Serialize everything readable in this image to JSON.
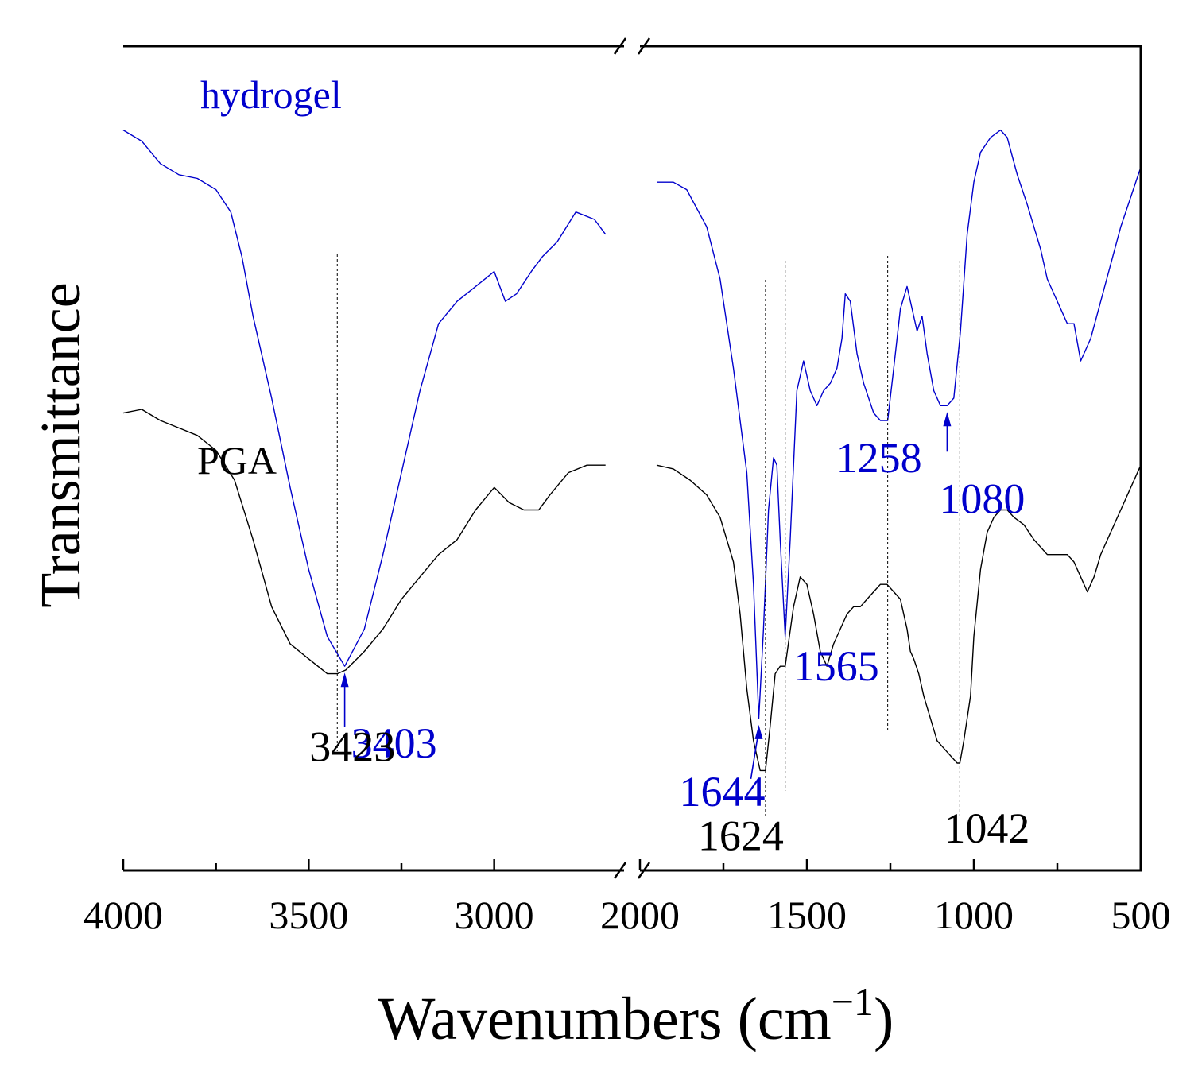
{
  "chart_data": {
    "type": "line",
    "title": "",
    "xlabel": "Wavenumbers (cm",
    "xlabel_sup": "−1",
    "xlabel_close": ")",
    "ylabel": "Transmittance",
    "segments": [
      {
        "xmin": 2650,
        "xmax": 4000,
        "reversed": true
      },
      {
        "xmin": 500,
        "xmax": 2000,
        "reversed": true
      }
    ],
    "x_ticks": [
      "4000",
      "3500",
      "3000",
      "2000",
      "1500",
      "1000",
      "500"
    ],
    "series": [
      {
        "name": "hydrogel",
        "color": "#0000cc",
        "segments": [
          [
            [
              4000,
              93
            ],
            [
              3950,
              91.5
            ],
            [
              3900,
              88.5
            ],
            [
              3850,
              87
            ],
            [
              3800,
              86.5
            ],
            [
              3750,
              85
            ],
            [
              3710,
              82
            ],
            [
              3680,
              76
            ],
            [
              3650,
              68
            ],
            [
              3600,
              57
            ],
            [
              3550,
              45
            ],
            [
              3500,
              34
            ],
            [
              3450,
              25
            ],
            [
              3403,
              21
            ],
            [
              3350,
              26
            ],
            [
              3300,
              36
            ],
            [
              3250,
              47
            ],
            [
              3200,
              58
            ],
            [
              3150,
              67
            ],
            [
              3100,
              70
            ],
            [
              3050,
              72
            ],
            [
              3000,
              74
            ],
            [
              2970,
              70
            ],
            [
              2940,
              71
            ],
            [
              2900,
              74
            ],
            [
              2870,
              76
            ],
            [
              2830,
              78
            ],
            [
              2780,
              82
            ],
            [
              2730,
              81
            ],
            [
              2700,
              79
            ]
          ],
          [
            [
              1950,
              86
            ],
            [
              1900,
              86
            ],
            [
              1860,
              85
            ],
            [
              1800,
              80
            ],
            [
              1760,
              73
            ],
            [
              1720,
              61
            ],
            [
              1700,
              54
            ],
            [
              1680,
              47
            ],
            [
              1660,
              32
            ],
            [
              1644,
              14
            ],
            [
              1630,
              26
            ],
            [
              1615,
              42
            ],
            [
              1600,
              49
            ],
            [
              1590,
              48
            ],
            [
              1580,
              38
            ],
            [
              1565,
              25
            ],
            [
              1550,
              38
            ],
            [
              1530,
              58
            ],
            [
              1510,
              62
            ],
            [
              1490,
              58
            ],
            [
              1470,
              56
            ],
            [
              1450,
              58
            ],
            [
              1430,
              59
            ],
            [
              1410,
              61
            ],
            [
              1395,
              65
            ],
            [
              1385,
              71
            ],
            [
              1370,
              70
            ],
            [
              1350,
              63
            ],
            [
              1330,
              59
            ],
            [
              1300,
              55
            ],
            [
              1280,
              54
            ],
            [
              1258,
              54
            ],
            [
              1240,
              61
            ],
            [
              1220,
              69
            ],
            [
              1200,
              72
            ],
            [
              1185,
              69
            ],
            [
              1170,
              66
            ],
            [
              1155,
              68
            ],
            [
              1140,
              63
            ],
            [
              1120,
              58
            ],
            [
              1100,
              56
            ],
            [
              1080,
              56
            ],
            [
              1060,
              57
            ],
            [
              1040,
              66
            ],
            [
              1020,
              79
            ],
            [
              1000,
              86
            ],
            [
              980,
              90
            ],
            [
              950,
              92
            ],
            [
              920,
              93
            ],
            [
              900,
              92
            ],
            [
              870,
              87
            ],
            [
              840,
              83
            ],
            [
              820,
              80
            ],
            [
              800,
              77
            ],
            [
              780,
              73
            ],
            [
              750,
              70
            ],
            [
              720,
              67
            ],
            [
              700,
              67
            ],
            [
              680,
              62
            ],
            [
              650,
              65
            ],
            [
              620,
              70
            ],
            [
              590,
              75
            ],
            [
              560,
              80
            ],
            [
              530,
              84
            ],
            [
              500,
              88
            ]
          ]
        ]
      },
      {
        "name": "PGA",
        "color": "#000000",
        "segments": [
          [
            [
              4000,
              55
            ],
            [
              3950,
              55.5
            ],
            [
              3900,
              54
            ],
            [
              3850,
              53
            ],
            [
              3800,
              52
            ],
            [
              3750,
              50
            ],
            [
              3700,
              46
            ],
            [
              3650,
              38
            ],
            [
              3600,
              29
            ],
            [
              3550,
              24
            ],
            [
              3500,
              22
            ],
            [
              3450,
              20
            ],
            [
              3423,
              20
            ],
            [
              3400,
              20.5
            ],
            [
              3350,
              23
            ],
            [
              3300,
              26
            ],
            [
              3250,
              30
            ],
            [
              3200,
              33
            ],
            [
              3150,
              36
            ],
            [
              3100,
              38
            ],
            [
              3050,
              42
            ],
            [
              3000,
              45
            ],
            [
              2960,
              43
            ],
            [
              2920,
              42
            ],
            [
              2880,
              42
            ],
            [
              2850,
              44
            ],
            [
              2800,
              47
            ],
            [
              2750,
              48
            ],
            [
              2700,
              48
            ]
          ],
          [
            [
              1950,
              48
            ],
            [
              1900,
              47.5
            ],
            [
              1850,
              46
            ],
            [
              1800,
              44
            ],
            [
              1760,
              41
            ],
            [
              1720,
              35
            ],
            [
              1700,
              28
            ],
            [
              1680,
              18
            ],
            [
              1660,
              11
            ],
            [
              1640,
              7
            ],
            [
              1624,
              7
            ],
            [
              1610,
              13
            ],
            [
              1595,
              20
            ],
            [
              1580,
              21
            ],
            [
              1565,
              21
            ],
            [
              1540,
              29
            ],
            [
              1520,
              33
            ],
            [
              1500,
              32
            ],
            [
              1480,
              28
            ],
            [
              1460,
              23
            ],
            [
              1440,
              21
            ],
            [
              1420,
              24
            ],
            [
              1400,
              26
            ],
            [
              1380,
              28
            ],
            [
              1360,
              29
            ],
            [
              1340,
              29
            ],
            [
              1320,
              30
            ],
            [
              1300,
              31
            ],
            [
              1280,
              32
            ],
            [
              1260,
              32
            ],
            [
              1240,
              31
            ],
            [
              1220,
              30
            ],
            [
              1200,
              26
            ],
            [
              1190,
              23
            ],
            [
              1180,
              22
            ],
            [
              1165,
              20
            ],
            [
              1150,
              17
            ],
            [
              1130,
              14
            ],
            [
              1110,
              11
            ],
            [
              1090,
              10
            ],
            [
              1070,
              9
            ],
            [
              1050,
              8
            ],
            [
              1042,
              8
            ],
            [
              1030,
              11
            ],
            [
              1010,
              17
            ],
            [
              1000,
              25
            ],
            [
              980,
              34
            ],
            [
              960,
              39
            ],
            [
              940,
              41
            ],
            [
              920,
              42
            ],
            [
              900,
              42
            ],
            [
              880,
              41
            ],
            [
              850,
              40
            ],
            [
              820,
              38
            ],
            [
              800,
              37
            ],
            [
              780,
              36
            ],
            [
              750,
              36
            ],
            [
              720,
              36
            ],
            [
              700,
              35
            ],
            [
              680,
              33
            ],
            [
              660,
              31
            ],
            [
              640,
              33
            ],
            [
              620,
              36
            ],
            [
              600,
              38
            ],
            [
              580,
              40
            ],
            [
              560,
              42
            ],
            [
              530,
              45
            ],
            [
              500,
              48
            ]
          ]
        ]
      }
    ],
    "series_labels": [
      {
        "text": "hydrogel",
        "color": "#0000cc"
      },
      {
        "text": "PGA",
        "color": "#000000"
      }
    ],
    "peaks": [
      {
        "wn": 3403,
        "label": "3403",
        "color": "#0000cc",
        "series": "hydrogel",
        "arrow": true
      },
      {
        "wn": 1644,
        "label": "1644",
        "color": "#0000cc",
        "series": "hydrogel",
        "arrow": true
      },
      {
        "wn": 1565,
        "label": "1565",
        "color": "#0000cc",
        "series": "hydrogel",
        "arrow": false
      },
      {
        "wn": 1258,
        "label": "1258",
        "color": "#0000cc",
        "series": "hydrogel",
        "arrow": false
      },
      {
        "wn": 1080,
        "label": "1080",
        "color": "#0000cc",
        "series": "hydrogel",
        "arrow": true
      },
      {
        "wn": 3423,
        "label": "3423",
        "color": "#000000",
        "series": "PGA",
        "arrow": false
      },
      {
        "wn": 1624,
        "label": "1624",
        "color": "#000000",
        "series": "PGA",
        "arrow": false
      },
      {
        "wn": 1042,
        "label": "1042",
        "color": "#000000",
        "series": "PGA",
        "arrow": false
      }
    ],
    "ylim": [
      0,
      100
    ],
    "grid": false,
    "legend": "none"
  }
}
